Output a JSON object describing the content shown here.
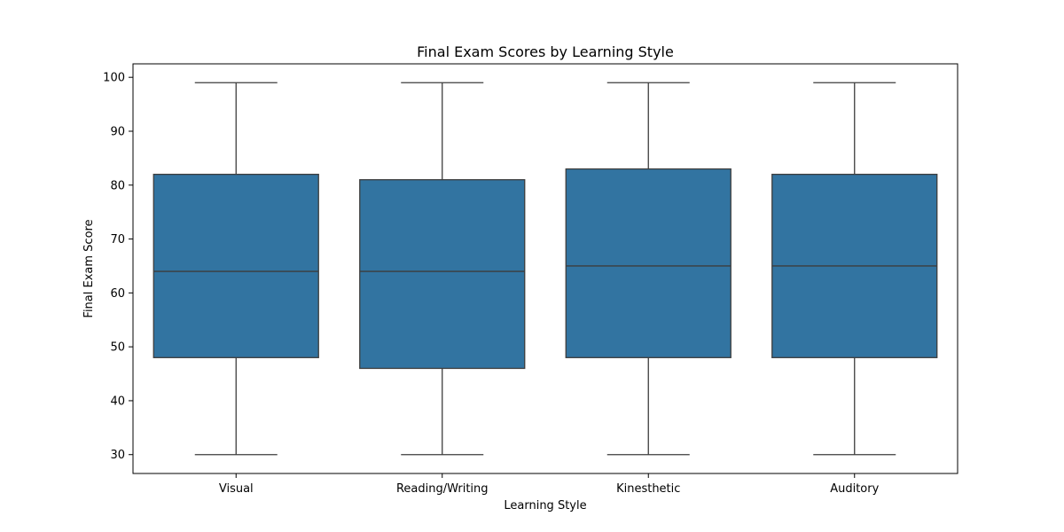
{
  "chart_data": {
    "type": "box",
    "title": "Final Exam Scores by Learning Style",
    "xlabel": "Learning Style",
    "ylabel": "Final Exam Score",
    "ylim": [
      26.5,
      102.5
    ],
    "yticks": [
      30,
      40,
      50,
      60,
      70,
      80,
      90,
      100
    ],
    "grid": false,
    "box_color": "#3274a1",
    "line_color": "#3d3d3d",
    "categories": [
      "Visual",
      "Reading/Writing",
      "Kinesthetic",
      "Auditory"
    ],
    "boxes": [
      {
        "category": "Visual",
        "whislo": 30,
        "q1": 48,
        "median": 64,
        "q3": 82,
        "whishi": 99
      },
      {
        "category": "Reading/Writing",
        "whislo": 30,
        "q1": 46,
        "median": 64,
        "q3": 81,
        "whishi": 99
      },
      {
        "category": "Kinesthetic",
        "whislo": 30,
        "q1": 48,
        "median": 65,
        "q3": 83,
        "whishi": 99
      },
      {
        "category": "Auditory",
        "whislo": 30,
        "q1": 48,
        "median": 65,
        "q3": 82,
        "whishi": 99
      }
    ]
  }
}
